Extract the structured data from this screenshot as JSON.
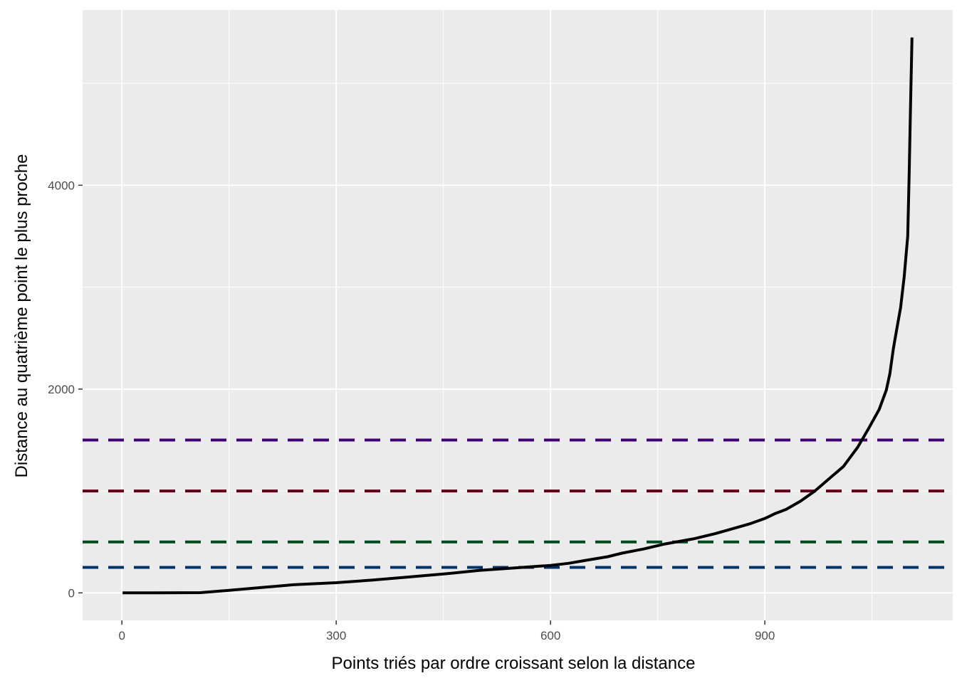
{
  "chart_data": {
    "type": "line",
    "title": "",
    "xlabel": "Points triés par ordre croissant selon la distance",
    "ylabel": "Distance au quatrième point le plus proche",
    "xlim": [
      -55,
      1163
    ],
    "ylim": [
      -270,
      5720
    ],
    "x_ticks": [
      0,
      300,
      600,
      900
    ],
    "x_tick_labels": [
      "0",
      "300",
      "600",
      "900"
    ],
    "y_ticks": [
      0,
      2000,
      4000
    ],
    "y_tick_labels": [
      "0",
      "2000",
      "4000"
    ],
    "x_minor_ticks": [
      150,
      450,
      750,
      1050
    ],
    "y_minor_ticks": [
      1000,
      3000,
      5000
    ],
    "grid": true,
    "background": "#ebebeb",
    "series": [
      {
        "color": "#000000",
        "x": [
          1,
          50,
          110,
          150,
          200,
          240,
          300,
          350,
          400,
          450,
          500,
          550,
          600,
          625,
          650,
          680,
          700,
          730,
          760,
          800,
          830,
          860,
          880,
          900,
          915,
          930,
          950,
          970,
          990,
          1010,
          1030,
          1045,
          1060,
          1070,
          1075,
          1080,
          1085,
          1090,
          1095,
          1100,
          1102,
          1104,
          1106
        ],
        "values": [
          0,
          0,
          2,
          25,
          55,
          80,
          100,
          125,
          155,
          185,
          220,
          245,
          270,
          290,
          320,
          355,
          390,
          430,
          480,
          530,
          580,
          640,
          680,
          730,
          780,
          820,
          900,
          1000,
          1120,
          1240,
          1430,
          1610,
          1800,
          1990,
          2150,
          2400,
          2600,
          2800,
          3100,
          3500,
          4100,
          4800,
          5450
        ]
      }
    ],
    "hlines": [
      {
        "y": 250,
        "color": "#00336a",
        "style": "dashed"
      },
      {
        "y": 500,
        "color": "#004a20",
        "style": "dashed"
      },
      {
        "y": 1000,
        "color": "#5c0019",
        "style": "dashed"
      },
      {
        "y": 1500,
        "color": "#3f006f",
        "style": "dashed"
      }
    ]
  }
}
